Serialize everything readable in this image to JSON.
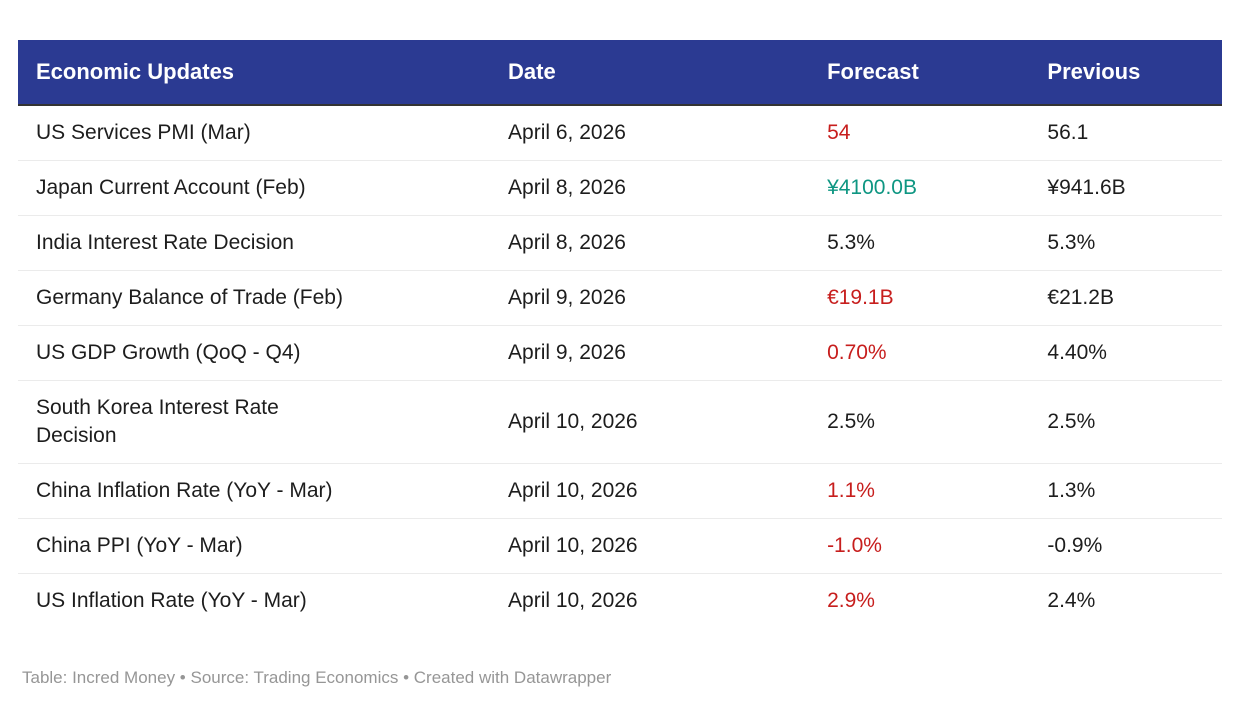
{
  "chart_data": {
    "type": "table",
    "title": "Economic Updates",
    "legend_position": "none",
    "grid": "horizontal-dividers",
    "columns": [
      {
        "label": "Economic Updates"
      },
      {
        "label": "Date"
      },
      {
        "label": "Forecast"
      },
      {
        "label": "Previous"
      }
    ],
    "rows": [
      {
        "event": "US Services PMI (Mar)",
        "date": "April 6, 2026",
        "forecast": "54",
        "forecast_color": "negative",
        "previous": "56.1"
      },
      {
        "event": "Japan Current Account (Feb)",
        "date": "April 8, 2026",
        "forecast": "¥4100.0B",
        "forecast_color": "positive",
        "previous": "¥941.6B"
      },
      {
        "event": "India Interest Rate Decision",
        "date": "April 8, 2026",
        "forecast": "5.3%",
        "forecast_color": "default",
        "previous": "5.3%"
      },
      {
        "event": "Germany Balance of Trade (Feb)",
        "date": "April 9, 2026",
        "forecast": "€19.1B",
        "forecast_color": "negative",
        "previous": "€21.2B"
      },
      {
        "event": "US GDP Growth (QoQ - Q4)",
        "date": "April 9, 2026",
        "forecast": "0.70%",
        "forecast_color": "negative",
        "previous": "4.40%"
      },
      {
        "event": "South Korea Interest Rate\nDecision",
        "date": "April 10, 2026",
        "forecast": "2.5%",
        "forecast_color": "default",
        "previous": "2.5%"
      },
      {
        "event": "China Inflation Rate (YoY - Mar)",
        "date": "April 10, 2026",
        "forecast": "1.1%",
        "forecast_color": "negative",
        "previous": "1.3%"
      },
      {
        "event": "China PPI (YoY - Mar)",
        "date": "April 10, 2026",
        "forecast": "-1.0%",
        "forecast_color": "negative",
        "previous": "-0.9%"
      },
      {
        "event": "US Inflation Rate (YoY - Mar)",
        "date": "April 10, 2026",
        "forecast": "2.9%",
        "forecast_color": "negative",
        "previous": "2.4%"
      }
    ]
  },
  "footer": {
    "attribution": "Table: Incred Money • Source: Trading Economics • Created with Datawrapper"
  },
  "colors": {
    "header_bg": "#2B3A92",
    "header_text": "#FFFFFF",
    "header_border": "#333333",
    "body_text": "#1D1D1D",
    "negative": "#C71E1D",
    "positive": "#0E9682",
    "row_divider": "#EBEBEB",
    "footer_text": "#969696",
    "page_bg": "#FFFFFF"
  }
}
